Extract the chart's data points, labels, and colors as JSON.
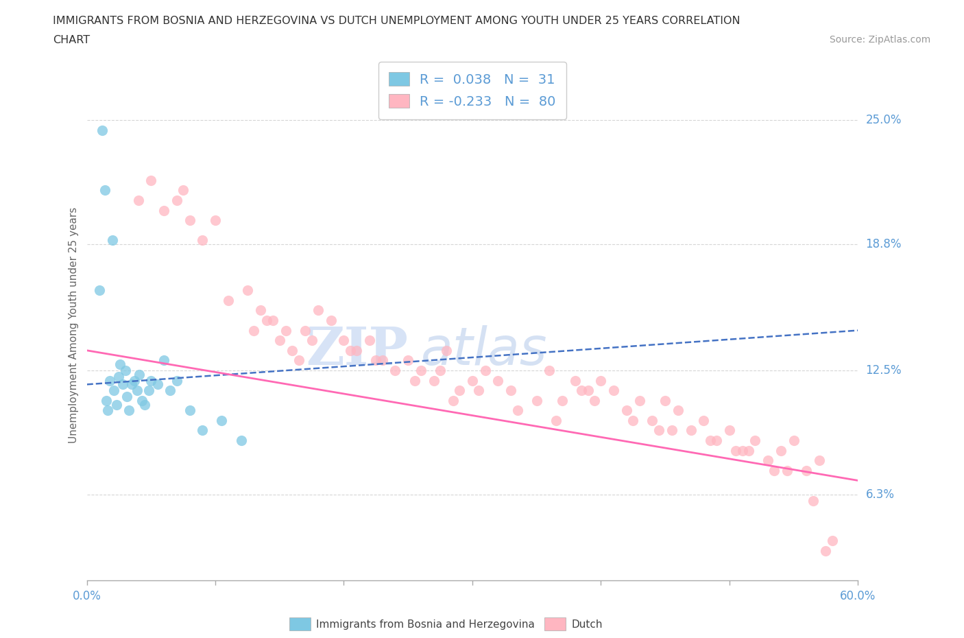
{
  "title_line1": "IMMIGRANTS FROM BOSNIA AND HERZEGOVINA VS DUTCH UNEMPLOYMENT AMONG YOUTH UNDER 25 YEARS CORRELATION",
  "title_line2": "CHART",
  "source_text": "Source: ZipAtlas.com",
  "ylabel": "Unemployment Among Youth under 25 years",
  "xmin": 0.0,
  "xmax": 60.0,
  "ymin": 2.0,
  "ymax": 27.5,
  "yticks": [
    6.3,
    12.5,
    18.8,
    25.0
  ],
  "ytick_labels": [
    "6.3%",
    "12.5%",
    "18.8%",
    "25.0%"
  ],
  "color_blue": "#7EC8E3",
  "color_pink": "#FFB6C1",
  "color_blue_line": "#4472C4",
  "color_pink_line": "#FF69B4",
  "legend_label1": "Immigrants from Bosnia and Herzegovina",
  "legend_label2": "Dutch",
  "R1": 0.038,
  "N1": 31,
  "R2": -0.233,
  "N2": 80,
  "blue_scatter_x": [
    1.2,
    1.4,
    2.0,
    1.5,
    1.6,
    1.8,
    2.1,
    2.3,
    2.5,
    2.6,
    2.8,
    3.0,
    3.1,
    3.3,
    3.5,
    3.7,
    3.9,
    4.1,
    4.3,
    4.5,
    4.8,
    5.0,
    5.5,
    6.0,
    6.5,
    7.0,
    8.0,
    9.0,
    10.5,
    12.0,
    1.0
  ],
  "blue_scatter_y": [
    24.5,
    21.5,
    19.0,
    11.0,
    10.5,
    12.0,
    11.5,
    10.8,
    12.2,
    12.8,
    11.8,
    12.5,
    11.2,
    10.5,
    11.8,
    12.0,
    11.5,
    12.3,
    11.0,
    10.8,
    11.5,
    12.0,
    11.8,
    13.0,
    11.5,
    12.0,
    10.5,
    9.5,
    10.0,
    9.0,
    16.5
  ],
  "pink_scatter_x": [
    5.0,
    6.0,
    7.5,
    9.0,
    10.0,
    11.0,
    12.5,
    13.0,
    14.0,
    15.0,
    16.0,
    16.5,
    17.0,
    18.0,
    19.0,
    20.0,
    21.0,
    22.0,
    23.0,
    24.0,
    25.0,
    26.0,
    27.0,
    28.0,
    29.0,
    30.0,
    31.0,
    32.0,
    33.0,
    35.0,
    36.0,
    37.0,
    38.0,
    39.0,
    40.0,
    41.0,
    42.0,
    43.0,
    44.0,
    45.0,
    46.0,
    47.0,
    48.0,
    49.0,
    50.0,
    51.0,
    52.0,
    53.0,
    54.0,
    55.0,
    56.0,
    57.0,
    58.0,
    4.0,
    7.0,
    8.0,
    13.5,
    15.5,
    17.5,
    20.5,
    22.5,
    25.5,
    27.5,
    30.5,
    33.5,
    36.5,
    39.5,
    42.5,
    45.5,
    48.5,
    51.5,
    54.5,
    57.5,
    14.5,
    28.5,
    38.5,
    44.5,
    50.5,
    53.5,
    56.5
  ],
  "pink_scatter_y": [
    22.0,
    20.5,
    21.5,
    19.0,
    20.0,
    16.0,
    16.5,
    14.5,
    15.0,
    14.0,
    13.5,
    13.0,
    14.5,
    15.5,
    15.0,
    14.0,
    13.5,
    14.0,
    13.0,
    12.5,
    13.0,
    12.5,
    12.0,
    13.5,
    11.5,
    12.0,
    12.5,
    12.0,
    11.5,
    11.0,
    12.5,
    11.0,
    12.0,
    11.5,
    12.0,
    11.5,
    10.5,
    11.0,
    10.0,
    11.0,
    10.5,
    9.5,
    10.0,
    9.0,
    9.5,
    8.5,
    9.0,
    8.0,
    8.5,
    9.0,
    7.5,
    8.0,
    4.0,
    21.0,
    21.0,
    20.0,
    15.5,
    14.5,
    14.0,
    13.5,
    13.0,
    12.0,
    12.5,
    11.5,
    10.5,
    10.0,
    11.0,
    10.0,
    9.5,
    9.0,
    8.5,
    7.5,
    3.5,
    15.0,
    11.0,
    11.5,
    9.5,
    8.5,
    7.5,
    6.0
  ],
  "background_color": "#FFFFFF",
  "grid_color": "#CCCCCC",
  "axis_label_color": "#5B9BD5",
  "title_color": "#333333",
  "watermark_zip_color": "#D0DFF5",
  "watermark_atlas_color": "#C8D8F0",
  "blue_trend_start_y": 11.8,
  "blue_trend_end_y": 14.5,
  "pink_trend_start_y": 13.5,
  "pink_trend_end_y": 7.0
}
